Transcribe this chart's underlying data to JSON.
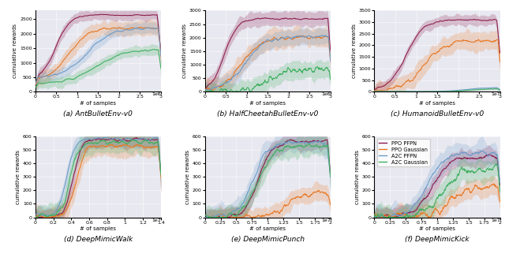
{
  "subplots": [
    {
      "title": "(a) AntBulletEnv-v0",
      "xlabel": "# of samples",
      "ylabel": "cumulative rewards",
      "xlim": [
        0,
        3000000
      ],
      "ylim": [
        0,
        2800
      ],
      "x_scale": 1000000,
      "x_ticks": [
        0.0,
        0.5,
        1.0,
        1.5,
        2.0,
        2.5,
        3.0
      ],
      "y_ticks": [
        0,
        500,
        1000,
        1500,
        2000,
        2500
      ],
      "exp_label": "1e6"
    },
    {
      "title": "(b) HalfCheetahBulletEnv-v0",
      "xlabel": "# of samples",
      "ylabel": "cumulative rewards",
      "xlim": [
        0,
        3000000
      ],
      "ylim": [
        0,
        3000
      ],
      "x_scale": 1000000,
      "x_ticks": [
        0.0,
        0.5,
        1.0,
        1.5,
        2.0,
        2.5,
        3.0
      ],
      "y_ticks": [
        0,
        500,
        1000,
        1500,
        2000,
        2500,
        3000
      ],
      "exp_label": "1e6"
    },
    {
      "title": "(c) HumanoidBulletEnv-v0",
      "xlabel": "# of samples",
      "ylabel": "cumulative rewards",
      "xlim": [
        0,
        30000000
      ],
      "ylim": [
        0,
        3500
      ],
      "x_scale": 10000000,
      "x_ticks": [
        0.0,
        0.5,
        1.0,
        1.5,
        2.0,
        2.5,
        3.0
      ],
      "y_ticks": [
        0,
        500,
        1000,
        1500,
        2000,
        2500,
        3000,
        3500
      ],
      "exp_label": "1e7"
    },
    {
      "title": "(d) DeepMimicWalk",
      "xlabel": "# of samples",
      "ylabel": "cumulative rewards",
      "xlim": [
        0,
        14000000
      ],
      "ylim": [
        0,
        600
      ],
      "x_scale": 10000000,
      "x_ticks": [
        0.0,
        0.2,
        0.4,
        0.6,
        0.8,
        1.0,
        1.2,
        1.4
      ],
      "y_ticks": [
        0,
        100,
        200,
        300,
        400,
        500,
        600
      ],
      "exp_label": "1e7"
    },
    {
      "title": "(e) DeepMimicPunch",
      "xlabel": "# of samples",
      "ylabel": "cumulative rewards",
      "xlim": [
        0,
        20000000
      ],
      "ylim": [
        0,
        600
      ],
      "x_scale": 10000000,
      "x_ticks": [
        0.0,
        0.25,
        0.5,
        0.75,
        1.0,
        1.25,
        1.5,
        1.75,
        2.0
      ],
      "y_ticks": [
        0,
        100,
        200,
        300,
        400,
        500,
        600
      ],
      "exp_label": "1e7"
    },
    {
      "title": "(f) DeepMimicKick",
      "xlabel": "# of samples",
      "ylabel": "cumulative rewards",
      "xlim": [
        0,
        20000000
      ],
      "ylim": [
        0,
        600
      ],
      "x_scale": 10000000,
      "x_ticks": [
        0.0,
        0.25,
        0.5,
        0.75,
        1.0,
        1.25,
        1.5,
        1.75,
        2.0
      ],
      "y_ticks": [
        0,
        100,
        200,
        300,
        400,
        500,
        600
      ],
      "exp_label": "1e7"
    }
  ],
  "colors": {
    "PPO_PFPN": "#8b1a4a",
    "PPO_Gaussian": "#e87722",
    "A2C_PFPN": "#6b9bc8",
    "A2C_Gaussian": "#3daf5e"
  },
  "legend_labels": [
    "PPO PFPN",
    "PPO Gaussian",
    "A2C PFPN",
    "A2C Gaussian"
  ],
  "legend_colors": [
    "#8b1a4a",
    "#e87722",
    "#6b9bc8",
    "#3daf5e"
  ],
  "bg_color": "#e8e8f0",
  "alpha_fill": 0.22,
  "linewidth": 0.75,
  "font_size_label": 5.0,
  "font_size_tick": 4.5,
  "font_size_title": 6.5,
  "font_size_legend": 4.8
}
